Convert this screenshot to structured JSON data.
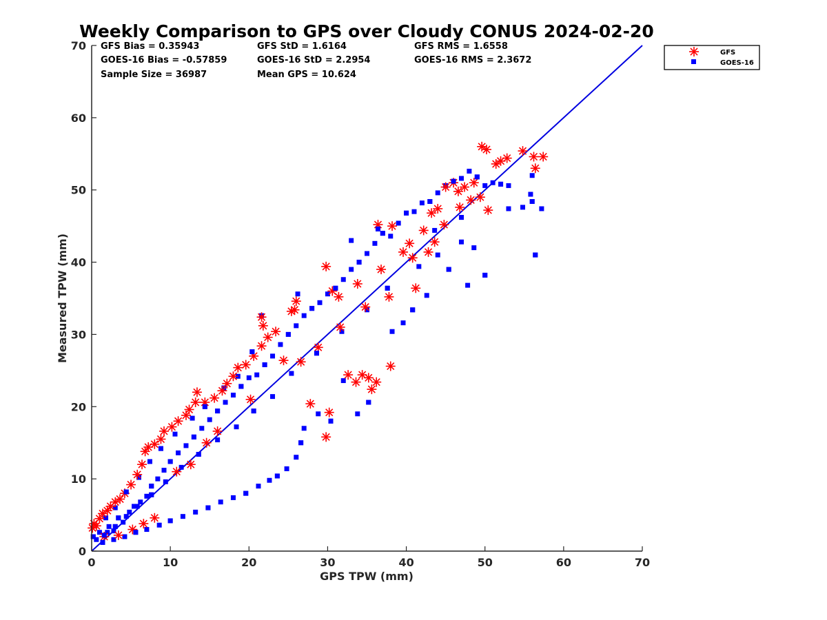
{
  "chart_data": {
    "type": "scatter",
    "title": "Weekly Comparison to GPS over Cloudy CONUS 2024-02-20",
    "xlabel": "GPS TPW (mm)",
    "ylabel": "Measured TPW (mm)",
    "xlim": [
      0,
      70
    ],
    "ylim": [
      0,
      70
    ],
    "xticks": [
      "0",
      "10",
      "20",
      "30",
      "40",
      "50",
      "60",
      "70"
    ],
    "yticks": [
      "0",
      "10",
      "20",
      "30",
      "40",
      "50",
      "60",
      "70"
    ],
    "grid": false,
    "legend_position": "outside-top-right",
    "stats": [
      [
        "GFS Bias = 0.35943",
        "GFS StD = 1.6164",
        "GFS RMS = 1.6558"
      ],
      [
        "GOES-16 Bias = -0.57859",
        "GOES-16 StD = 2.2954",
        "GOES-16 RMS = 2.3672"
      ],
      [
        "Sample Size = 36987",
        "Mean GPS = 10.624"
      ]
    ],
    "reference_line": {
      "x": [
        0,
        70
      ],
      "y": [
        0,
        70
      ],
      "color": "#0000e0"
    },
    "series": [
      {
        "name": "GFS",
        "marker": "asterisk",
        "color": "#ff0000",
        "points": [
          [
            0.1,
            3.2
          ],
          [
            0.3,
            3.8
          ],
          [
            0.6,
            3.5
          ],
          [
            1.0,
            4.5
          ],
          [
            1.4,
            5.2
          ],
          [
            2.0,
            5.6
          ],
          [
            2.4,
            6.2
          ],
          [
            3.0,
            6.8
          ],
          [
            3.6,
            7.2
          ],
          [
            4.2,
            8.0
          ],
          [
            5.0,
            9.2
          ],
          [
            5.8,
            10.6
          ],
          [
            6.4,
            12.0
          ],
          [
            6.8,
            13.8
          ],
          [
            7.2,
            14.4
          ],
          [
            8.0,
            14.8
          ],
          [
            8.8,
            15.5
          ],
          [
            9.2,
            16.6
          ],
          [
            10.2,
            17.2
          ],
          [
            11.0,
            18.0
          ],
          [
            12.0,
            18.8
          ],
          [
            12.4,
            19.6
          ],
          [
            13.2,
            20.6
          ],
          [
            13.4,
            22.0
          ],
          [
            14.4,
            20.6
          ],
          [
            15.6,
            21.2
          ],
          [
            16.6,
            22.2
          ],
          [
            17.2,
            23.2
          ],
          [
            18.0,
            24.2
          ],
          [
            18.6,
            25.4
          ],
          [
            19.6,
            25.8
          ],
          [
            20.6,
            27.0
          ],
          [
            21.6,
            28.4
          ],
          [
            22.4,
            29.6
          ],
          [
            23.4,
            30.4
          ],
          [
            21.6,
            32.4
          ],
          [
            21.8,
            31.2
          ],
          [
            25.4,
            33.2
          ],
          [
            26.0,
            34.6
          ],
          [
            25.8,
            33.4
          ],
          [
            29.8,
            39.4
          ],
          [
            30.6,
            36.0
          ],
          [
            31.4,
            35.2
          ],
          [
            32.6,
            24.4
          ],
          [
            33.6,
            23.4
          ],
          [
            35.6,
            22.4
          ],
          [
            36.2,
            23.4
          ],
          [
            34.4,
            24.4
          ],
          [
            35.2,
            24.0
          ],
          [
            38.0,
            25.6
          ],
          [
            36.4,
            45.2
          ],
          [
            38.2,
            45.0
          ],
          [
            39.6,
            41.4
          ],
          [
            40.4,
            42.6
          ],
          [
            42.2,
            44.4
          ],
          [
            43.2,
            46.8
          ],
          [
            43.6,
            42.8
          ],
          [
            45.0,
            50.4
          ],
          [
            46.0,
            51.0
          ],
          [
            46.6,
            49.8
          ],
          [
            47.4,
            50.4
          ],
          [
            48.6,
            51.0
          ],
          [
            49.4,
            49.0
          ],
          [
            49.6,
            56.0
          ],
          [
            50.2,
            55.6
          ],
          [
            51.4,
            53.6
          ],
          [
            52.0,
            54.0
          ],
          [
            52.8,
            54.4
          ],
          [
            54.8,
            55.4
          ],
          [
            56.2,
            54.6
          ],
          [
            57.4,
            54.6
          ],
          [
            56.4,
            53.0
          ],
          [
            29.8,
            15.8
          ],
          [
            30.2,
            19.2
          ],
          [
            27.8,
            20.4
          ],
          [
            5.2,
            3.0
          ],
          [
            6.6,
            3.8
          ],
          [
            8.0,
            4.6
          ],
          [
            3.4,
            2.2
          ],
          [
            1.6,
            2.0
          ],
          [
            44.0,
            47.4
          ],
          [
            50.4,
            47.2
          ],
          [
            41.2,
            36.4
          ],
          [
            37.8,
            35.2
          ],
          [
            24.4,
            26.4
          ],
          [
            26.6,
            26.2
          ],
          [
            14.6,
            15.0
          ],
          [
            16.0,
            16.6
          ],
          [
            10.8,
            11.0
          ],
          [
            12.6,
            12.0
          ],
          [
            20.2,
            21.0
          ],
          [
            28.8,
            28.2
          ],
          [
            31.6,
            31.0
          ],
          [
            34.8,
            33.8
          ],
          [
            33.8,
            37.0
          ],
          [
            36.8,
            39.0
          ],
          [
            40.8,
            40.6
          ],
          [
            42.8,
            41.4
          ],
          [
            44.8,
            45.2
          ],
          [
            46.8,
            47.6
          ],
          [
            48.2,
            48.6
          ]
        ]
      },
      {
        "name": "GOES-16",
        "marker": "square",
        "color": "#0000ff",
        "points": [
          [
            0.2,
            2.0
          ],
          [
            0.6,
            1.6
          ],
          [
            1.0,
            2.6
          ],
          [
            1.6,
            2.2
          ],
          [
            2.2,
            3.4
          ],
          [
            2.8,
            2.8
          ],
          [
            3.4,
            4.6
          ],
          [
            4.0,
            4.0
          ],
          [
            4.8,
            5.4
          ],
          [
            5.4,
            6.2
          ],
          [
            6.2,
            6.8
          ],
          [
            7.0,
            7.6
          ],
          [
            7.6,
            9.0
          ],
          [
            8.4,
            10.0
          ],
          [
            9.2,
            11.2
          ],
          [
            10.0,
            12.4
          ],
          [
            11.0,
            13.6
          ],
          [
            12.0,
            14.6
          ],
          [
            13.0,
            15.8
          ],
          [
            14.0,
            17.0
          ],
          [
            15.0,
            18.2
          ],
          [
            16.0,
            19.4
          ],
          [
            17.0,
            20.6
          ],
          [
            18.0,
            21.6
          ],
          [
            19.0,
            22.8
          ],
          [
            20.0,
            24.0
          ],
          [
            21.0,
            24.4
          ],
          [
            22.0,
            25.8
          ],
          [
            23.0,
            27.0
          ],
          [
            24.0,
            28.6
          ],
          [
            25.0,
            30.0
          ],
          [
            26.0,
            31.2
          ],
          [
            27.0,
            32.6
          ],
          [
            28.0,
            33.6
          ],
          [
            29.0,
            34.4
          ],
          [
            30.0,
            35.6
          ],
          [
            31.0,
            36.4
          ],
          [
            32.0,
            37.6
          ],
          [
            33.0,
            39.0
          ],
          [
            34.0,
            40.0
          ],
          [
            35.0,
            41.2
          ],
          [
            36.0,
            42.6
          ],
          [
            37.0,
            44.0
          ],
          [
            38.0,
            43.6
          ],
          [
            39.0,
            45.4
          ],
          [
            40.0,
            46.8
          ],
          [
            41.0,
            47.0
          ],
          [
            42.0,
            48.2
          ],
          [
            43.0,
            48.4
          ],
          [
            44.0,
            49.6
          ],
          [
            45.0,
            50.6
          ],
          [
            46.0,
            51.2
          ],
          [
            47.0,
            51.6
          ],
          [
            48.0,
            52.6
          ],
          [
            49.0,
            51.8
          ],
          [
            50.0,
            50.6
          ],
          [
            51.0,
            51.0
          ],
          [
            52.0,
            50.8
          ],
          [
            53.0,
            50.6
          ],
          [
            56.0,
            52.0
          ],
          [
            56.4,
            41.0
          ],
          [
            57.2,
            47.4
          ],
          [
            55.8,
            49.4
          ],
          [
            56.0,
            48.4
          ],
          [
            54.8,
            47.6
          ],
          [
            53.0,
            47.4
          ],
          [
            50.0,
            38.2
          ],
          [
            47.8,
            36.8
          ],
          [
            42.6,
            35.4
          ],
          [
            40.8,
            33.4
          ],
          [
            39.6,
            31.6
          ],
          [
            38.2,
            30.4
          ],
          [
            35.2,
            20.6
          ],
          [
            33.8,
            19.0
          ],
          [
            32.0,
            23.6
          ],
          [
            30.4,
            18.0
          ],
          [
            28.8,
            19.0
          ],
          [
            27.0,
            17.0
          ],
          [
            26.6,
            15.0
          ],
          [
            26.0,
            13.0
          ],
          [
            24.8,
            11.4
          ],
          [
            23.6,
            10.4
          ],
          [
            22.6,
            9.8
          ],
          [
            21.2,
            9.0
          ],
          [
            19.6,
            8.0
          ],
          [
            18.0,
            7.4
          ],
          [
            16.4,
            6.8
          ],
          [
            14.8,
            6.0
          ],
          [
            13.2,
            5.4
          ],
          [
            11.6,
            4.8
          ],
          [
            10.0,
            4.2
          ],
          [
            8.6,
            3.6
          ],
          [
            7.0,
            3.0
          ],
          [
            5.6,
            2.6
          ],
          [
            4.2,
            2.0
          ],
          [
            2.8,
            1.6
          ],
          [
            1.4,
            1.2
          ],
          [
            26.2,
            35.6
          ],
          [
            21.6,
            32.6
          ],
          [
            20.4,
            27.6
          ],
          [
            18.6,
            24.2
          ],
          [
            16.8,
            22.6
          ],
          [
            14.4,
            20.0
          ],
          [
            12.8,
            18.4
          ],
          [
            10.6,
            16.2
          ],
          [
            8.8,
            14.2
          ],
          [
            7.4,
            12.4
          ],
          [
            6.0,
            10.2
          ],
          [
            4.4,
            8.2
          ],
          [
            3.0,
            6.0
          ],
          [
            1.8,
            4.6
          ],
          [
            36.4,
            44.6
          ],
          [
            33.0,
            43.0
          ],
          [
            43.6,
            44.4
          ],
          [
            45.4,
            39.0
          ],
          [
            47.0,
            42.8
          ],
          [
            48.6,
            42.0
          ],
          [
            47.0,
            46.2
          ],
          [
            44.0,
            41.0
          ],
          [
            41.6,
            39.4
          ],
          [
            37.6,
            36.4
          ],
          [
            35.0,
            33.4
          ],
          [
            31.8,
            30.4
          ],
          [
            28.6,
            27.4
          ],
          [
            25.4,
            24.6
          ],
          [
            23.0,
            21.4
          ],
          [
            20.6,
            19.4
          ],
          [
            18.4,
            17.2
          ],
          [
            16.0,
            15.4
          ],
          [
            13.6,
            13.4
          ],
          [
            11.4,
            11.6
          ],
          [
            9.4,
            9.6
          ],
          [
            7.6,
            7.8
          ],
          [
            5.8,
            6.2
          ],
          [
            4.4,
            4.8
          ],
          [
            3.0,
            3.4
          ],
          [
            2.0,
            2.6
          ]
        ]
      }
    ]
  }
}
